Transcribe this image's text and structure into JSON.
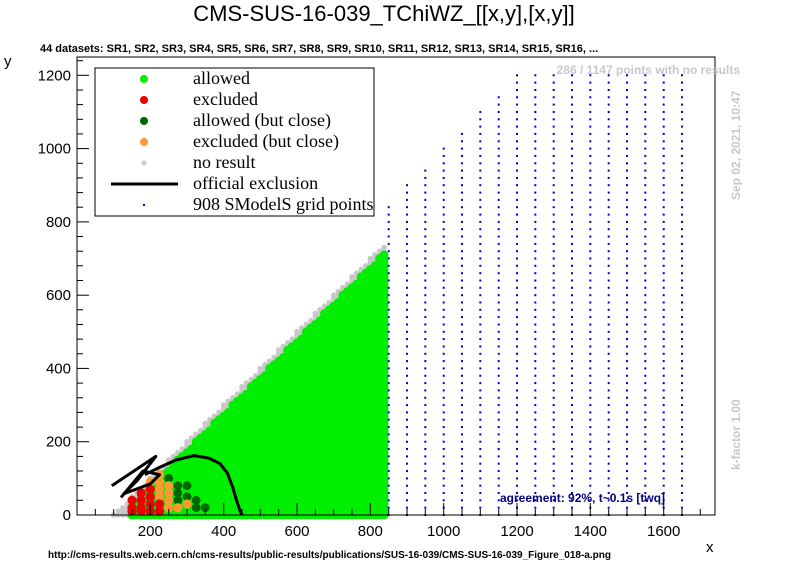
{
  "header": {
    "title": "CMS-SUS-16-039_TChiWZ_[[x,y],[x,y]]",
    "datasets": "44 datasets: SR1, SR2, SR3, SR4, SR5, SR6, SR7, SR8, SR9, SR10, SR11, SR12, SR13, SR14, SR15, SR16,  ..."
  },
  "annotations": {
    "no_results": "286 / 1147 points with no results",
    "timestamp": "Sep 02, 2021, 10:47",
    "kfactor": "k-factor 1.00",
    "agreement": "agreement: 92%, t~0.1s [twq]",
    "url": "http://cms-results.web.cern.ch/cms-results/public-results/publications/SUS-16-039/CMS-SUS-16-039_Figure_018-a.png"
  },
  "legend": {
    "allowed": "allowed",
    "excluded": "excluded",
    "allowed_close": "allowed (but close)",
    "excluded_close": "excluded (but close)",
    "no_result": "no result",
    "official": "official exclusion",
    "grid": "908 SModelS grid points"
  },
  "colors": {
    "allowed": "#00ee00",
    "excluded": "#ee0000",
    "allowed_close": "#006600",
    "excluded_close": "#ff9933",
    "no_result": "#c8c8c8",
    "grid": "#0000cc",
    "agreement": "#000080"
  },
  "chart_data": {
    "type": "scatter",
    "xlabel": "x",
    "ylabel": "y",
    "xlim": [
      0,
      1740
    ],
    "ylim": [
      0,
      1250
    ],
    "x_ticks": [
      200,
      400,
      600,
      800,
      1000,
      1200,
      1400,
      1600
    ],
    "y_ticks": [
      0,
      200,
      400,
      600,
      800,
      1000,
      1200
    ],
    "x_tick_labels": [
      "200",
      "400",
      "600",
      "800",
      "1000",
      "1200",
      "1400",
      "1600"
    ],
    "y_tick_labels": [
      "0",
      "200",
      "400",
      "600",
      "800",
      "1000",
      "1200"
    ],
    "point_regions": {
      "no_result": {
        "x_min": 100,
        "x_max": 840,
        "y_min": 0,
        "y_max_offset": 100
      },
      "allowed": {
        "x_min": 150,
        "x_max": 840,
        "y_max_offset": 125
      },
      "grid": {
        "x_min": 850,
        "x_max": 1650,
        "step_x": 50,
        "step_y": 20,
        "y_max_offset": 0
      }
    },
    "excluded_points": [
      [
        150,
        20
      ],
      [
        150,
        40
      ],
      [
        175,
        20
      ],
      [
        175,
        40
      ],
      [
        175,
        60
      ],
      [
        200,
        10
      ],
      [
        200,
        30
      ],
      [
        200,
        50
      ],
      [
        200,
        70
      ],
      [
        225,
        10
      ],
      [
        225,
        30
      ],
      [
        175,
        10
      ],
      [
        150,
        10
      ]
    ],
    "excluded_close_points": [
      [
        200,
        90
      ],
      [
        225,
        50
      ],
      [
        225,
        70
      ],
      [
        225,
        90
      ],
      [
        250,
        20
      ],
      [
        250,
        40
      ],
      [
        250,
        60
      ],
      [
        250,
        80
      ],
      [
        275,
        20
      ],
      [
        225,
        110
      ],
      [
        300,
        30
      ]
    ],
    "allowed_close_points": [
      [
        250,
        100
      ],
      [
        275,
        40
      ],
      [
        275,
        60
      ],
      [
        300,
        50
      ],
      [
        325,
        20
      ],
      [
        325,
        40
      ],
      [
        275,
        80
      ],
      [
        350,
        20
      ],
      [
        300,
        80
      ]
    ],
    "official_exclusion": [
      [
        [
          95,
          80
        ],
        [
          140,
          110
        ],
        [
          215,
          160
        ],
        [
          165,
          95
        ],
        [
          128,
          58
        ],
        [
          200,
          85
        ],
        [
          225,
          110
        ],
        [
          180,
          120
        ],
        [
          120,
          48
        ]
      ],
      [
        [
          185,
          110
        ],
        [
          225,
          130
        ],
        [
          270,
          150
        ],
        [
          320,
          162
        ],
        [
          360,
          155
        ],
        [
          390,
          140
        ],
        [
          410,
          115
        ],
        [
          425,
          75
        ],
        [
          435,
          40
        ],
        [
          445,
          10
        ],
        [
          450,
          0
        ]
      ]
    ]
  }
}
